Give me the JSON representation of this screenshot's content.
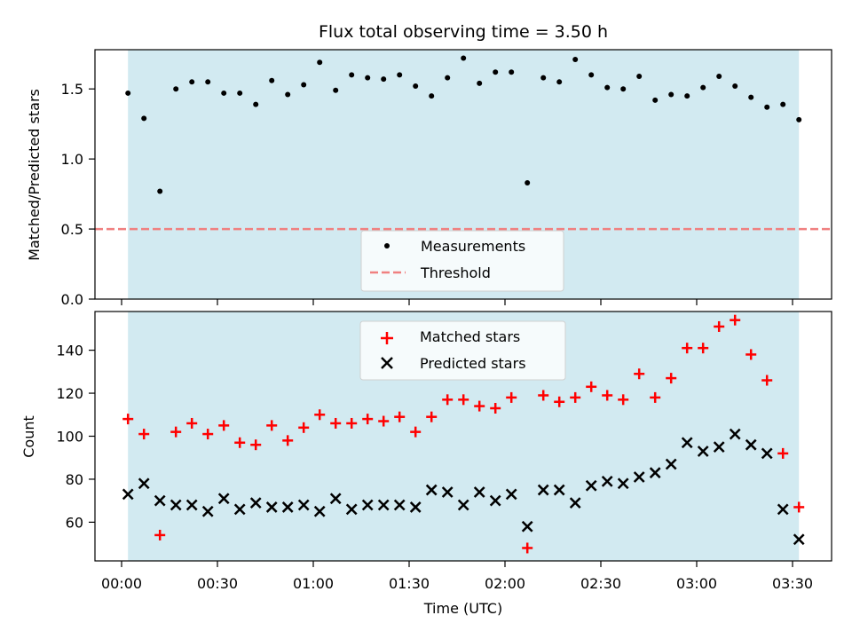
{
  "chart_data": [
    {
      "type": "scatter",
      "title": "Flux total observing time = 3.50 h",
      "xlabel": "",
      "ylabel": "Matched/Predicted stars",
      "ylim": [
        0,
        1.78
      ],
      "yticks": [
        "0.0",
        "0.5",
        "1.0",
        "1.5"
      ],
      "threshold": 0.5,
      "observing_window": [
        "00:02",
        "03:32"
      ],
      "legend": [
        "Measurements",
        "Threshold"
      ],
      "legend_position": "lower-center",
      "series": [
        {
          "name": "Measurements",
          "x": [
            2,
            7,
            12,
            17,
            22,
            27,
            32,
            37,
            42,
            47,
            52,
            57,
            62,
            67,
            72,
            77,
            82,
            87,
            92,
            97,
            102,
            107,
            112,
            117,
            122,
            127,
            132,
            137,
            142,
            147,
            152,
            157,
            162,
            167,
            172,
            177,
            182,
            187,
            192,
            197,
            202,
            207,
            212
          ],
          "values": [
            1.47,
            1.29,
            0.77,
            1.5,
            1.55,
            1.55,
            1.47,
            1.47,
            1.39,
            1.56,
            1.46,
            1.53,
            1.69,
            1.49,
            1.6,
            1.58,
            1.57,
            1.6,
            1.52,
            1.45,
            1.58,
            1.72,
            1.54,
            1.62,
            1.62,
            0.83,
            1.58,
            1.55,
            1.71,
            1.6,
            1.51,
            1.5,
            1.59,
            1.42,
            1.46,
            1.45,
            1.51,
            1.59,
            1.52,
            1.44,
            1.37,
            1.39,
            1.28
          ]
        }
      ]
    },
    {
      "type": "scatter",
      "title": "",
      "xlabel": "Time (UTC)",
      "ylabel": "Count",
      "ylim": [
        42,
        158
      ],
      "yticks": [
        "60",
        "80",
        "100",
        "120",
        "140"
      ],
      "xticks": [
        "00:00",
        "00:30",
        "01:00",
        "01:30",
        "02:00",
        "02:30",
        "03:00",
        "03:30"
      ],
      "observing_window": [
        "00:02",
        "03:32"
      ],
      "legend": [
        "Matched stars",
        "Predicted stars"
      ],
      "legend_position": "upper-center",
      "x": [
        2,
        7,
        12,
        17,
        22,
        27,
        32,
        37,
        42,
        47,
        52,
        57,
        62,
        67,
        72,
        77,
        82,
        87,
        92,
        97,
        102,
        107,
        112,
        117,
        122,
        127,
        132,
        137,
        142,
        147,
        152,
        157,
        162,
        167,
        172,
        177,
        182,
        187,
        192,
        197,
        202,
        207,
        212
      ],
      "series": [
        {
          "name": "Matched stars",
          "values": [
            108,
            101,
            54,
            102,
            106,
            101,
            105,
            97,
            96,
            105,
            98,
            104,
            110,
            106,
            106,
            108,
            107,
            109,
            102,
            109,
            117,
            117,
            114,
            113,
            118,
            48,
            119,
            116,
            118,
            123,
            119,
            117,
            129,
            118,
            127,
            141,
            141,
            151,
            154,
            138,
            126,
            92,
            67
          ]
        },
        {
          "name": "Predicted stars",
          "values": [
            73,
            78,
            70,
            68,
            68,
            65,
            71,
            66,
            69,
            67,
            67,
            68,
            65,
            71,
            66,
            68,
            68,
            68,
            67,
            75,
            74,
            68,
            74,
            70,
            73,
            58,
            75,
            75,
            69,
            77,
            79,
            78,
            81,
            83,
            87,
            97,
            93,
            95,
            101,
            96,
            92,
            66,
            52
          ]
        }
      ]
    }
  ],
  "colors": {
    "shade": "#add8e6",
    "threshold": "#f08080",
    "matched": "#ff0000",
    "predicted": "#000000",
    "measurement": "#000000"
  }
}
